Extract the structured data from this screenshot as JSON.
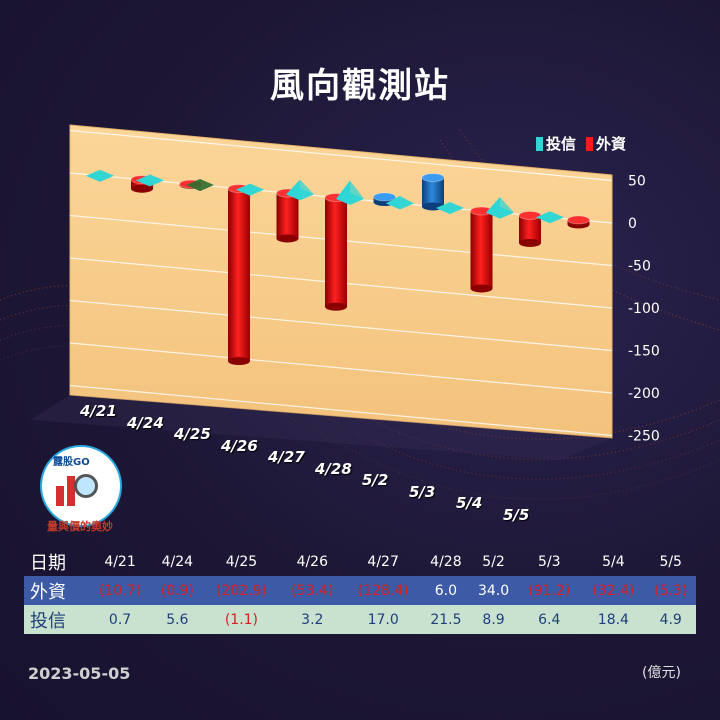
{
  "title": "風向觀測站",
  "legend": {
    "trust": "投信",
    "foreign": "外資"
  },
  "colors": {
    "trust": "#2fd6d6",
    "foreign": "#ff1a1a",
    "foreign_pos": "#1f6fc0",
    "trust_neg": "#2e6b2e",
    "panel": "#f6cc8a"
  },
  "logo": {
    "brand": "露股GO",
    "sub": "量與價的奧妙"
  },
  "table": {
    "header_label": "日期",
    "foreign_label": "外資",
    "trust_label": "投信",
    "dates": [
      "4/21",
      "4/24",
      "4/25",
      "4/26",
      "4/27",
      "4/28",
      "5/2",
      "5/3",
      "5/4",
      "5/5"
    ],
    "foreign": [
      "(10.7)",
      "(0.9)",
      "(202.9)",
      "(53.4)",
      "(128.4)",
      "6.0",
      "34.0",
      "(91.2)",
      "(32.4)",
      "(5.3)"
    ],
    "trust": [
      "0.7",
      "5.6",
      "(1.1)",
      "3.2",
      "17.0",
      "21.5",
      "8.9",
      "6.4",
      "18.4",
      "4.9"
    ]
  },
  "footer": {
    "date": "2023-05-05",
    "unit": "(億元)"
  },
  "chart_data": {
    "type": "bar",
    "categories": [
      "4/21",
      "4/24",
      "4/25",
      "4/26",
      "4/27",
      "4/28",
      "5/2",
      "5/3",
      "5/4",
      "5/5"
    ],
    "series": [
      {
        "name": "投信",
        "values": [
          0.7,
          5.6,
          -1.1,
          3.2,
          17.0,
          21.5,
          8.9,
          6.4,
          18.4,
          4.9
        ]
      },
      {
        "name": "外資",
        "values": [
          -10.7,
          -0.9,
          -202.9,
          -53.4,
          -128.4,
          6.0,
          34.0,
          -91.2,
          -32.4,
          -5.3
        ]
      }
    ],
    "y_ticks": [
      "50",
      "0",
      "-50",
      "-100",
      "-150",
      "-200",
      "-250"
    ],
    "ylim": [
      -250,
      50
    ],
    "grid": true,
    "legend_position": "top-right"
  }
}
